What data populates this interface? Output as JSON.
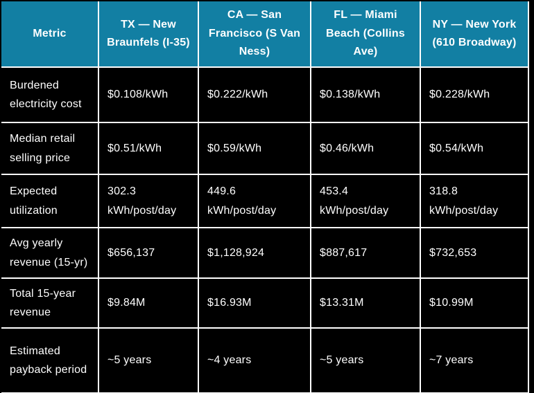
{
  "colors": {
    "header_bg": "#127FA3",
    "body_bg": "#000000",
    "grid_border": "#FFFFFF",
    "text": "#FFFFFF"
  },
  "chart_data": {
    "type": "table",
    "columns": [
      "Metric",
      "TX — New Braunfels (I-35)",
      "CA — San Francisco (S Van Ness)",
      "FL — Miami Beach (Collins Ave)",
      "NY — New York (610 Broadway)"
    ],
    "rows": [
      [
        "Burdened electricity cost",
        "$0.108/kWh",
        "$0.222/kWh",
        "$0.138/kWh",
        "$0.228/kWh"
      ],
      [
        "Median retail selling price",
        "$0.51/kWh",
        "$0.59/kWh",
        "$0.46/kWh",
        "$0.54/kWh"
      ],
      [
        "Expected utilization",
        "302.3 kWh/post/day",
        "449.6 kWh/post/day",
        "453.4 kWh/post/day",
        "318.8 kWh/post/day"
      ],
      [
        "Avg yearly revenue (15-yr)",
        "$656,137",
        "$1,128,924",
        "$887,617",
        "$732,653"
      ],
      [
        "Total 15-year revenue",
        "$9.84M",
        "$16.93M",
        "$13.31M",
        "$10.99M"
      ],
      [
        "Estimated payback period",
        "~5 years",
        "~4 years",
        "~5 years",
        "~7 years"
      ]
    ]
  }
}
